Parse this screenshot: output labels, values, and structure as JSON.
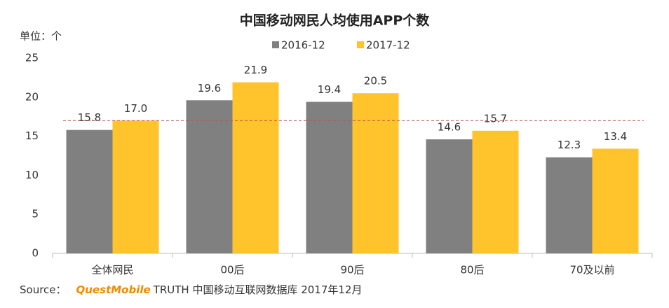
{
  "chart_data": {
    "type": "bar",
    "title": "中国移动网民人均使用APP个数",
    "unit_label": "单位：个",
    "categories": [
      "全体网民",
      "00后",
      "90后",
      "80后",
      "70及以前"
    ],
    "series": [
      {
        "name": "2016-12",
        "color": "#808080",
        "values": [
          15.8,
          19.6,
          19.4,
          14.6,
          12.3
        ],
        "value_labels": [
          "15.8",
          "19.6",
          "19.4",
          "14.6",
          "12.3"
        ]
      },
      {
        "name": "2017-12",
        "color": "#ffc32b",
        "values": [
          17.0,
          21.9,
          20.5,
          15.7,
          13.4
        ],
        "value_labels": [
          "17.0",
          "21.9",
          "20.5",
          "15.7",
          "13.4"
        ]
      }
    ],
    "reference_line": 17.0,
    "ylim": [
      0,
      25
    ],
    "yticks": [
      0,
      5,
      10,
      15,
      20,
      25
    ],
    "grid": false,
    "legend": "top"
  },
  "source": {
    "label": "Source：",
    "brand": "QuestMobile",
    "text": "TRUTH 中国移动互联网数据库 2017年12月"
  }
}
